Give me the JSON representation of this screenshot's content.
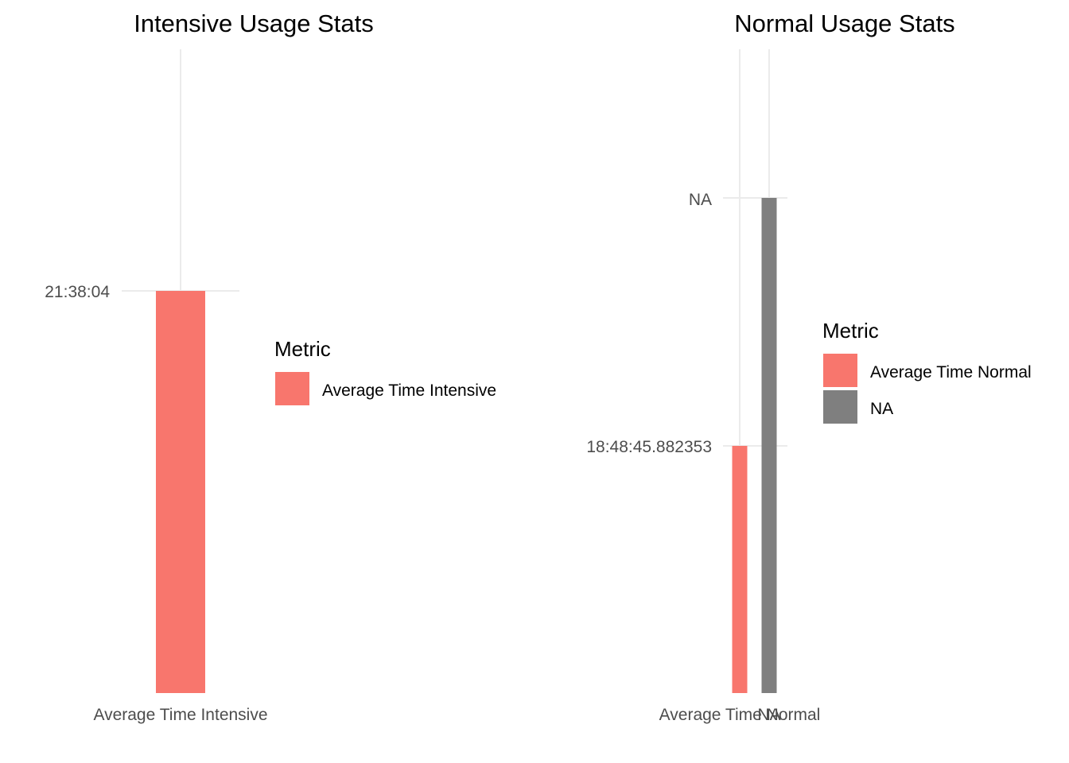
{
  "chart_data": [
    {
      "type": "bar",
      "title": "Intensive Usage Stats",
      "xlabel": "",
      "ylabel": "",
      "categories": [
        "Average Time Intensive"
      ],
      "y_ticks": [
        "21:38:04"
      ],
      "series": [
        {
          "name": "Average Time Intensive",
          "category": "Average Time Intensive",
          "value_label": "21:38:04",
          "value_seconds": 77884,
          "color": "#F8766D"
        }
      ],
      "legend": {
        "title": "Metric",
        "position": "right",
        "items": [
          {
            "label": "Average Time Intensive",
            "color": "#F8766D"
          }
        ]
      },
      "grid": true
    },
    {
      "type": "bar",
      "title": "Normal Usage Stats",
      "xlabel": "",
      "ylabel": "",
      "categories": [
        "Average Time Normal",
        "NA"
      ],
      "y_ticks": [
        "18:48:45.882353",
        "NA"
      ],
      "series": [
        {
          "name": "Average Time Normal",
          "category": "Average Time Normal",
          "value_label": "18:48:45.882353",
          "color": "#F8766D"
        },
        {
          "name": "NA",
          "category": "NA",
          "value_label": "NA",
          "color": "#7F7F7F"
        }
      ],
      "legend": {
        "title": "Metric",
        "position": "right",
        "items": [
          {
            "label": "Average Time Normal",
            "color": "#F8766D"
          },
          {
            "label": "NA",
            "color": "#7F7F7F"
          }
        ]
      },
      "grid": true
    }
  ]
}
